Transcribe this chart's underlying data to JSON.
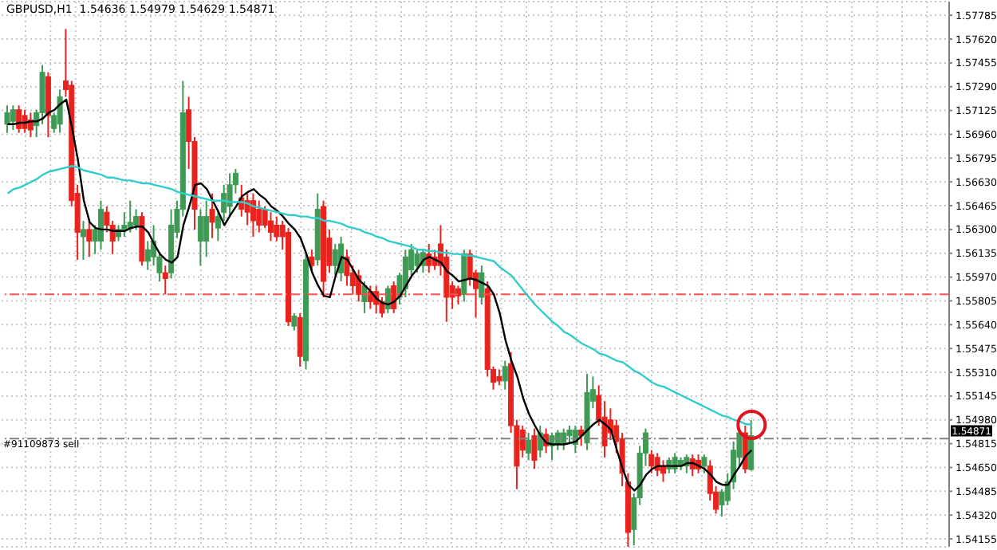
{
  "chart_data": {
    "type": "candlestick",
    "title": "GBPUSD,H1  1.54636 1.54979 1.54629 1.54871",
    "categories": [
      null,
      null,
      null,
      null,
      null,
      null,
      null,
      null,
      null,
      null,
      null,
      null,
      null,
      null,
      null,
      null,
      null,
      null,
      null,
      null,
      null,
      null,
      null,
      null,
      null,
      null,
      null,
      null,
      null,
      null,
      null,
      null,
      null,
      null,
      null,
      null,
      null,
      null,
      null,
      null,
      null,
      null,
      null,
      null,
      null,
      null,
      null,
      null,
      null,
      null,
      null,
      null,
      null,
      null,
      null,
      null,
      null,
      null,
      null,
      null,
      null,
      null,
      null,
      null,
      null,
      null,
      null,
      null,
      null,
      null,
      null,
      null,
      null,
      null,
      null,
      null,
      null,
      null,
      null,
      null,
      null,
      null,
      null,
      null,
      null,
      null,
      null,
      null,
      null,
      null,
      null,
      null,
      null,
      null,
      null,
      null,
      null,
      null,
      null,
      null,
      null,
      null,
      null,
      null,
      null,
      null,
      null,
      null,
      null,
      null,
      null,
      null,
      null,
      null,
      null,
      null,
      null,
      null,
      null,
      null,
      null,
      null,
      null,
      null,
      null,
      null,
      null,
      null
    ],
    "ohlc": [
      [
        1.5703,
        1.5716,
        1.5697,
        1.5711
      ],
      [
        1.5705,
        1.5716,
        1.5699,
        1.5713
      ],
      [
        1.5713,
        1.5716,
        1.5697,
        1.57
      ],
      [
        1.5709,
        1.5713,
        1.5697,
        1.57
      ],
      [
        1.5706,
        1.5711,
        1.5694,
        1.5699
      ],
      [
        1.5702,
        1.5713,
        1.5694,
        1.5711
      ],
      [
        1.5711,
        1.5744,
        1.5703,
        1.5739
      ],
      [
        1.5736,
        1.5739,
        1.5694,
        1.5709
      ],
      [
        1.57,
        1.5711,
        1.5697,
        1.5709
      ],
      [
        1.5703,
        1.5727,
        1.5697,
        1.5722
      ],
      [
        1.5733,
        1.5769,
        1.5722,
        1.5727
      ],
      [
        1.573,
        1.5733,
        1.5646,
        1.565
      ],
      [
        1.5655,
        1.5661,
        1.5609,
        1.5628
      ],
      [
        1.5625,
        1.5636,
        1.5609,
        1.563
      ],
      [
        1.563,
        1.5636,
        1.5611,
        1.5622
      ],
      [
        1.5622,
        1.5633,
        1.5613,
        1.563
      ],
      [
        1.5622,
        1.565,
        1.5616,
        1.5644
      ],
      [
        1.5642,
        1.5646,
        1.5628,
        1.5633
      ],
      [
        1.5633,
        1.5636,
        1.5613,
        1.5622
      ],
      [
        1.5625,
        1.5633,
        1.5622,
        1.563
      ],
      [
        1.563,
        1.5642,
        1.5625,
        1.5633
      ],
      [
        1.5631,
        1.565,
        1.5628,
        1.5635
      ],
      [
        1.5633,
        1.5644,
        1.563,
        1.5639
      ],
      [
        1.5639,
        1.5642,
        1.5605,
        1.5608
      ],
      [
        1.5608,
        1.5622,
        1.5602,
        1.5616
      ],
      [
        1.5611,
        1.5633,
        1.5605,
        1.5622
      ],
      [
        1.56,
        1.5613,
        1.5594,
        1.5611
      ],
      [
        1.56,
        1.5605,
        1.5585,
        1.5596
      ],
      [
        1.56,
        1.5644,
        1.5596,
        1.5633
      ],
      [
        1.5628,
        1.565,
        1.5624,
        1.5644
      ],
      [
        1.5644,
        1.5733,
        1.5639,
        1.5711
      ],
      [
        1.5713,
        1.5722,
        1.5672,
        1.5691
      ],
      [
        1.5691,
        1.5694,
        1.563,
        1.5644
      ],
      [
        1.5622,
        1.5644,
        1.5605,
        1.5639
      ],
      [
        1.5622,
        1.565,
        1.5611,
        1.5639
      ],
      [
        1.5644,
        1.5655,
        1.5624,
        1.5635
      ],
      [
        1.5631,
        1.5644,
        1.5622,
        1.5639
      ],
      [
        1.5642,
        1.5661,
        1.5636,
        1.5655
      ],
      [
        1.5646,
        1.5669,
        1.5639,
        1.5661
      ],
      [
        1.5661,
        1.5672,
        1.5655,
        1.5669
      ],
      [
        1.5652,
        1.5661,
        1.5639,
        1.5644
      ],
      [
        1.565,
        1.5655,
        1.5633,
        1.5642
      ],
      [
        1.565,
        1.5655,
        1.5625,
        1.5636
      ],
      [
        1.5644,
        1.565,
        1.5628,
        1.5633
      ],
      [
        1.5644,
        1.5646,
        1.5631,
        1.5633
      ],
      [
        1.5636,
        1.5642,
        1.5622,
        1.5628
      ],
      [
        1.5633,
        1.5639,
        1.5622,
        1.5625
      ],
      [
        1.5633,
        1.5636,
        1.5616,
        1.5625
      ],
      [
        1.5628,
        1.5631,
        1.5563,
        1.5566
      ],
      [
        1.5563,
        1.5572,
        1.556,
        1.557
      ],
      [
        1.5569,
        1.5572,
        1.5535,
        1.5542
      ],
      [
        1.5539,
        1.5613,
        1.5533,
        1.5609
      ],
      [
        1.5611,
        1.5616,
        1.56,
        1.5605
      ],
      [
        1.5609,
        1.5655,
        1.5605,
        1.5644
      ],
      [
        1.5646,
        1.565,
        1.5583,
        1.5594
      ],
      [
        1.5624,
        1.563,
        1.56,
        1.5605
      ],
      [
        1.5605,
        1.562,
        1.5598,
        1.5616
      ],
      [
        1.56,
        1.5625,
        1.5594,
        1.562
      ],
      [
        1.5611,
        1.5616,
        1.5591,
        1.5598
      ],
      [
        1.56,
        1.5605,
        1.5585,
        1.5591
      ],
      [
        1.5598,
        1.5602,
        1.558,
        1.5585
      ],
      [
        1.558,
        1.5594,
        1.5572,
        1.5591
      ],
      [
        1.5587,
        1.5591,
        1.5575,
        1.558
      ],
      [
        1.5587,
        1.5591,
        1.5572,
        1.5578
      ],
      [
        1.558,
        1.5583,
        1.5569,
        1.5572
      ],
      [
        1.5575,
        1.5591,
        1.5572,
        1.5589
      ],
      [
        1.5591,
        1.5594,
        1.5572,
        1.5575
      ],
      [
        1.5583,
        1.56,
        1.5578,
        1.5598
      ],
      [
        1.5589,
        1.5616,
        1.5583,
        1.5611
      ],
      [
        1.5602,
        1.562,
        1.5598,
        1.5616
      ],
      [
        1.5605,
        1.5616,
        1.56,
        1.5613
      ],
      [
        1.5605,
        1.5616,
        1.56,
        1.5614
      ],
      [
        1.5613,
        1.562,
        1.56,
        1.5605
      ],
      [
        1.5611,
        1.5616,
        1.5602,
        1.5605
      ],
      [
        1.562,
        1.5633,
        1.5598,
        1.5605
      ],
      [
        1.5611,
        1.5616,
        1.5566,
        1.5583
      ],
      [
        1.5591,
        1.5594,
        1.5575,
        1.5583
      ],
      [
        1.5589,
        1.5591,
        1.5578,
        1.5584
      ],
      [
        1.5585,
        1.5616,
        1.558,
        1.5613
      ],
      [
        1.5613,
        1.5616,
        1.5591,
        1.5596
      ],
      [
        1.56,
        1.5602,
        1.5569,
        1.5589
      ],
      [
        1.5583,
        1.5605,
        1.5578,
        1.56
      ],
      [
        1.5589,
        1.5594,
        1.5528,
        1.5533
      ],
      [
        1.5533,
        1.5535,
        1.5519,
        1.5524
      ],
      [
        1.5528,
        1.5533,
        1.5522,
        1.5525
      ],
      [
        1.5525,
        1.5539,
        1.5519,
        1.5535
      ],
      [
        1.5537,
        1.5545,
        1.5489,
        1.5494
      ],
      [
        1.5494,
        1.5498,
        1.545,
        1.5466
      ],
      [
        1.5491,
        1.5494,
        1.5472,
        1.5477
      ],
      [
        1.5475,
        1.5489,
        1.547,
        1.5484
      ],
      [
        1.5487,
        1.5492,
        1.5464,
        1.547
      ],
      [
        1.5477,
        1.5494,
        1.5472,
        1.5489
      ],
      [
        1.5488,
        1.5492,
        1.5475,
        1.548
      ],
      [
        1.548,
        1.5489,
        1.547,
        1.5487
      ],
      [
        1.5481,
        1.5491,
        1.5477,
        1.5489
      ],
      [
        1.5482,
        1.5492,
        1.5477,
        1.5489
      ],
      [
        1.5487,
        1.5494,
        1.5482,
        1.5491
      ],
      [
        1.5481,
        1.5494,
        1.5475,
        1.5491
      ],
      [
        1.5491,
        1.5494,
        1.548,
        1.5487
      ],
      [
        1.5482,
        1.553,
        1.5477,
        1.5517
      ],
      [
        1.5511,
        1.5528,
        1.5506,
        1.5519
      ],
      [
        1.5515,
        1.5522,
        1.5494,
        1.5498
      ],
      [
        1.55,
        1.5511,
        1.5472,
        1.548
      ],
      [
        1.5498,
        1.5506,
        1.5484,
        1.5489
      ],
      [
        1.5494,
        1.5498,
        1.5475,
        1.5483
      ],
      [
        1.5485,
        1.5489,
        1.5452,
        1.5461
      ],
      [
        1.5455,
        1.5461,
        1.5408,
        1.542
      ],
      [
        1.5422,
        1.5447,
        1.5411,
        1.5444
      ],
      [
        1.5444,
        1.548,
        1.5439,
        1.5475
      ],
      [
        1.5475,
        1.5492,
        1.5466,
        1.5489
      ],
      [
        1.5474,
        1.5477,
        1.5461,
        1.5466
      ],
      [
        1.5472,
        1.5475,
        1.5459,
        1.5463
      ],
      [
        1.5466,
        1.547,
        1.5455,
        1.5461
      ],
      [
        1.5464,
        1.5472,
        1.5461,
        1.547
      ],
      [
        1.5464,
        1.5475,
        1.5461,
        1.5472
      ],
      [
        1.5466,
        1.5472,
        1.5463,
        1.547
      ],
      [
        1.5466,
        1.5474,
        1.5461,
        1.5472
      ],
      [
        1.5471,
        1.5474,
        1.5459,
        1.5464
      ],
      [
        1.547,
        1.5474,
        1.5461,
        1.5464
      ],
      [
        1.5466,
        1.5474,
        1.5461,
        1.5472
      ],
      [
        1.5466,
        1.547,
        1.5442,
        1.5447
      ],
      [
        1.5448,
        1.5452,
        1.5433,
        1.5436
      ],
      [
        1.5439,
        1.545,
        1.5431,
        1.5448
      ],
      [
        1.5442,
        1.5461,
        1.5439,
        1.5455
      ],
      [
        1.5455,
        1.5483,
        1.545,
        1.5477
      ],
      [
        1.5472,
        1.5489,
        1.5466,
        1.5489
      ],
      [
        1.5489,
        1.5494,
        1.5461,
        1.5464
      ],
      [
        1.54636,
        1.54979,
        1.54629,
        1.54871
      ]
    ],
    "colors": [
      "#3f9a55",
      "#3f9a55",
      "#e8231e",
      "#e8231e",
      "#e8231e",
      "#3f9a55",
      "#3f9a55",
      "#e8231e",
      "#3f9a55",
      "#3f9a55",
      "#e8231e",
      "#e8231e",
      "#e8231e",
      "#3f9a55",
      "#e8231e",
      "#3f9a55",
      "#3f9a55",
      "#e8231e",
      "#e8231e",
      "#3f9a55",
      "#3f9a55",
      "#3f9a55",
      "#3f9a55",
      "#e8231e",
      "#3f9a55",
      "#3f9a55",
      "#3f9a55",
      "#e8231e",
      "#3f9a55",
      "#3f9a55",
      "#3f9a55",
      "#e8231e",
      "#e8231e",
      "#3f9a55",
      "#3f9a55",
      "#e8231e",
      "#3f9a55",
      "#3f9a55",
      "#3f9a55",
      "#3f9a55",
      "#e8231e",
      "#e8231e",
      "#e8231e",
      "#e8231e",
      "#e8231e",
      "#e8231e",
      "#e8231e",
      "#e8231e",
      "#e8231e",
      "#3f9a55",
      "#e8231e",
      "#3f9a55",
      "#e8231e",
      "#3f9a55",
      "#e8231e",
      "#e8231e",
      "#3f9a55",
      "#3f9a55",
      "#e8231e",
      "#e8231e",
      "#e8231e",
      "#3f9a55",
      "#e8231e",
      "#e8231e",
      "#e8231e",
      "#3f9a55",
      "#e8231e",
      "#3f9a55",
      "#3f9a55",
      "#3f9a55",
      "#3f9a55",
      "#3f9a55",
      "#e8231e",
      "#e8231e",
      "#e8231e",
      "#e8231e",
      "#e8231e",
      "#e8231e",
      "#3f9a55",
      "#e8231e",
      "#e8231e",
      "#3f9a55",
      "#e8231e",
      "#e8231e",
      "#e8231e",
      "#3f9a55",
      "#e8231e",
      "#e8231e",
      "#e8231e",
      "#3f9a55",
      "#e8231e",
      "#3f9a55",
      "#e8231e",
      "#3f9a55",
      "#3f9a55",
      "#3f9a55",
      "#3f9a55",
      "#3f9a55",
      "#e8231e",
      "#3f9a55",
      "#3f9a55",
      "#e8231e",
      "#e8231e",
      "#e8231e",
      "#e8231e",
      "#e8231e",
      "#e8231e",
      "#3f9a55",
      "#3f9a55",
      "#3f9a55",
      "#e8231e",
      "#e8231e",
      "#e8231e",
      "#3f9a55",
      "#3f9a55",
      "#3f9a55",
      "#3f9a55",
      "#e8231e",
      "#e8231e",
      "#3f9a55",
      "#e8231e",
      "#e8231e",
      "#3f9a55",
      "#3f9a55",
      "#3f9a55",
      "#3f9a55",
      "#e8231e",
      "#3f9a55"
    ],
    "series": [
      {
        "type": "line",
        "color": "#000000",
        "values": [
          1.5703,
          1.5703,
          1.5704,
          1.5704,
          1.5705,
          1.5705,
          1.5707,
          1.5711,
          1.5713,
          1.5717,
          1.572,
          1.57,
          1.5678,
          1.565,
          1.5635,
          1.5631,
          1.563,
          1.563,
          1.5629,
          1.5629,
          1.5629,
          1.5631,
          1.5632,
          1.5632,
          1.5628,
          1.562,
          1.5613,
          1.5609,
          1.5607,
          1.5611,
          1.5633,
          1.5646,
          1.5661,
          1.5662,
          1.5658,
          1.565,
          1.5642,
          1.5633,
          1.564,
          1.5646,
          1.5653,
          1.5656,
          1.5658,
          1.5654,
          1.5651,
          1.5646,
          1.5643,
          1.5639,
          1.5634,
          1.563,
          1.5624,
          1.5613,
          1.56,
          1.5591,
          1.5584,
          1.5583,
          1.5598,
          1.5611,
          1.5609,
          1.5602,
          1.5595,
          1.5591,
          1.5587,
          1.5582,
          1.5579,
          1.5578,
          1.558,
          1.5584,
          1.5591,
          1.5598,
          1.5603,
          1.5609,
          1.5611,
          1.5609,
          1.5607,
          1.5601,
          1.5598,
          1.5594,
          1.5595,
          1.5596,
          1.5595,
          1.5593,
          1.5591,
          1.5585,
          1.5572,
          1.5553,
          1.5539,
          1.5528,
          1.5513,
          1.5502,
          1.5494,
          1.5487,
          1.5482,
          1.5481,
          1.5481,
          1.5481,
          1.5482,
          1.5483,
          1.5487,
          1.5491,
          1.5495,
          1.5498,
          1.5495,
          1.5491,
          1.5477,
          1.5464,
          1.5453,
          1.5449,
          1.5453,
          1.546,
          1.5464,
          1.5466,
          1.5466,
          1.5466,
          1.5466,
          1.5466,
          1.5468,
          1.5468,
          1.5466,
          1.5464,
          1.546,
          1.5455,
          1.5453,
          1.5453,
          1.546,
          1.5466,
          1.5473,
          1.5477
        ]
      },
      {
        "type": "line",
        "color": "#33cccc",
        "values": [
          1.5655,
          1.5658,
          1.5659,
          1.5661,
          1.5663,
          1.5665,
          1.5668,
          1.567,
          1.5671,
          1.5672,
          1.5673,
          1.5674,
          1.5673,
          1.5671,
          1.567,
          1.5669,
          1.5668,
          1.5666,
          1.5666,
          1.5665,
          1.5664,
          1.5664,
          1.5663,
          1.5662,
          1.5662,
          1.5661,
          1.566,
          1.5659,
          1.5658,
          1.5656,
          1.5655,
          1.5654,
          1.5653,
          1.5652,
          1.5651,
          1.565,
          1.565,
          1.565,
          1.5649,
          1.5649,
          1.5649,
          1.5648,
          1.5646,
          1.5645,
          1.5644,
          1.5643,
          1.5642,
          1.5641,
          1.564,
          1.564,
          1.5639,
          1.5639,
          1.5638,
          1.5638,
          1.5636,
          1.5636,
          1.5635,
          1.5634,
          1.5632,
          1.5631,
          1.563,
          1.5628,
          1.5627,
          1.5625,
          1.5624,
          1.5622,
          1.5621,
          1.562,
          1.5619,
          1.5618,
          1.5616,
          1.5616,
          1.5615,
          1.5615,
          1.5614,
          1.5614,
          1.5613,
          1.5613,
          1.5612,
          1.5612,
          1.5611,
          1.561,
          1.5609,
          1.5608,
          1.5604,
          1.5601,
          1.5598,
          1.5593,
          1.5588,
          1.5583,
          1.5578,
          1.5574,
          1.557,
          1.5566,
          1.5563,
          1.5559,
          1.5557,
          1.5554,
          1.5551,
          1.5549,
          1.5547,
          1.5544,
          1.5543,
          1.5541,
          1.5539,
          1.5538,
          1.5535,
          1.5532,
          1.553,
          1.5527,
          1.5524,
          1.5522,
          1.5521,
          1.5519,
          1.5517,
          1.5515,
          1.5513,
          1.5511,
          1.5509,
          1.5507,
          1.5505,
          1.5503,
          1.5501,
          1.55,
          1.5498,
          1.5497,
          1.5495,
          1.5495
        ]
      }
    ],
    "ylim": [
      1.541,
      1.5788
    ],
    "yticks": [
      1.57785,
      {
        "value": 1.5762,
        "label": "1.57620"
      },
      1.57455,
      {
        "value": 1.5729,
        "label": "1.57290"
      },
      1.57125,
      {
        "value": 1.5696,
        "label": "1.56960"
      },
      1.56795,
      {
        "value": 1.5663,
        "label": "1.56630"
      },
      1.56465,
      {
        "value": 1.563,
        "label": "1.56300"
      },
      1.56135,
      {
        "value": 1.5597,
        "label": "1.55970"
      },
      1.55805,
      {
        "value": 1.5564,
        "label": "1.55640"
      },
      1.55475,
      {
        "value": 1.5531,
        "label": "1.55310"
      },
      1.55145,
      {
        "value": 1.5498,
        "label": "1.54980"
      },
      1.54815,
      {
        "value": 1.5465,
        "label": "1.54650"
      },
      1.54485,
      {
        "value": 1.5432,
        "label": "1.54320"
      },
      1.54155
    ],
    "grid": true,
    "tick_labels": "y",
    "ref_lines": [
      {
        "axis": "y",
        "value": 1.5585,
        "color": "#ff5050",
        "line_style": "dashed"
      },
      {
        "axis": "y",
        "value": 1.5485,
        "label": "#91109873 sell",
        "color": "#808080",
        "line_style": "dashed"
      }
    ],
    "annotations": [
      "1.54871"
    ]
  }
}
